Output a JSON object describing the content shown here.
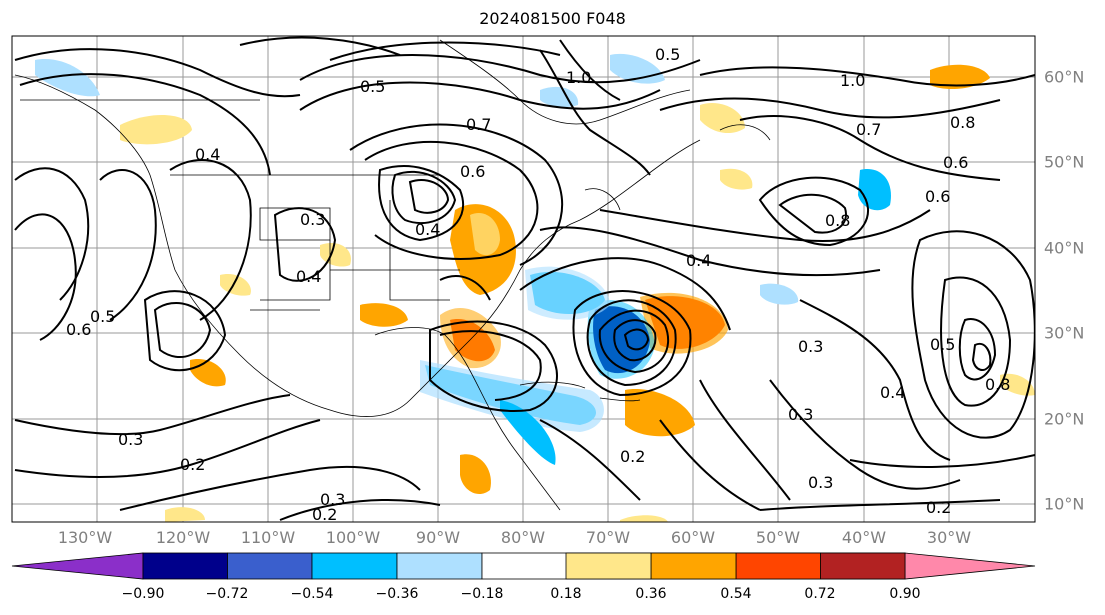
{
  "title": "2024081500 F048",
  "longitude_labels": [
    "130°W",
    "120°W",
    "110°W",
    "100°W",
    "90°W",
    "80°W",
    "70°W",
    "60°W",
    "50°W",
    "40°W",
    "30°W"
  ],
  "latitude_labels": [
    "60°N",
    "50°N",
    "40°N",
    "30°N",
    "20°N",
    "10°N"
  ],
  "contour_labels": [
    "0.5",
    "0.4",
    "0.6",
    "0.7",
    "1.0",
    "0.8",
    "0.6",
    "0.4",
    "0.3",
    "0.2",
    "0.3",
    "0.5",
    "0.6",
    "0.4",
    "0.3",
    "0.2",
    "0.3",
    "0.2",
    "0.8",
    "0.6",
    "0.4",
    "0.3",
    "0.2",
    "0.5",
    "0.4",
    "0.5",
    "0.8",
    "1.0",
    "0.7",
    "0.3"
  ],
  "colorbar": {
    "ticks": [
      "−0.90",
      "−0.72",
      "−0.54",
      "−0.36",
      "−0.18",
      "0.18",
      "0.36",
      "0.54",
      "0.72",
      "0.90"
    ],
    "colors": [
      "#8b2fc9",
      "#00008b",
      "#3a5fcd",
      "#00bfff",
      "#aee0ff",
      "#ffffff",
      "#ffe78a",
      "#ffa500",
      "#ff4500",
      "#b22222",
      "#ff88aa"
    ]
  }
}
